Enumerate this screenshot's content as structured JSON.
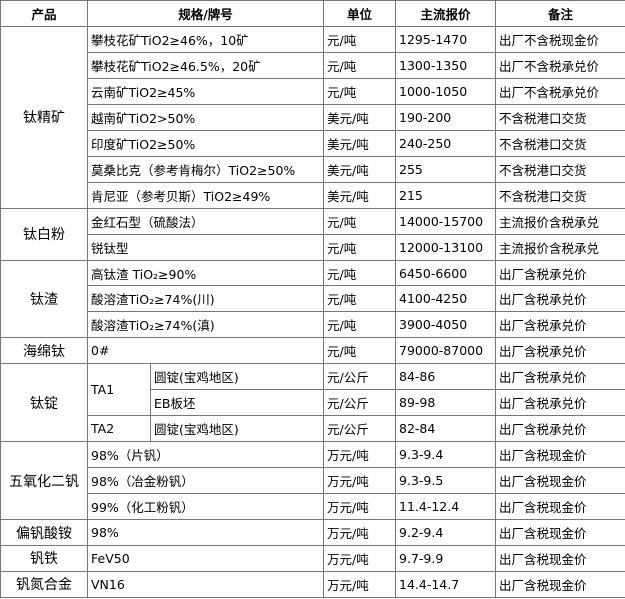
{
  "header": [
    "产品",
    "规格/牌号",
    "单位",
    "主流报价",
    "备注"
  ],
  "groups": [
    {
      "product": "钛精矿",
      "rows": [
        {
          "spec": "攀枝花矿TiO2≥46%，10矿",
          "unit": "元/吨",
          "price": "1295-1470",
          "note": "出厂不含税现金价"
        },
        {
          "spec": "攀枝花矿TiO2≥46.5%，20矿",
          "unit": "元/吨",
          "price": "1300-1350",
          "note": "出厂不含税承兑价"
        },
        {
          "spec": "云南矿TiO2≥45%",
          "unit": "元/吨",
          "price": "1000-1050",
          "note": "出厂不含税承兑价"
        },
        {
          "spec": "越南矿TiO2>50%",
          "unit": "美元/吨",
          "price": "190-200",
          "note": "不含税港口交货"
        },
        {
          "spec": "印度矿TiO2≥50%",
          "unit": "美元/吨",
          "price": "240-250",
          "note": "不含税港口交货"
        },
        {
          "spec": "莫桑比克（参考肯梅尔）TiO2≥50%",
          "unit": "美元/吨",
          "price": "255",
          "note": "不含税港口交货"
        },
        {
          "spec": "肯尼亚（参考贝斯）TiO2≥49%",
          "unit": "美元/吨",
          "price": "215",
          "note": "不含税港口交货"
        }
      ]
    },
    {
      "product": "钛白粉",
      "rows": [
        {
          "spec": "金红石型（硫酸法）",
          "unit": "元/吨",
          "price": "14000-15700",
          "note": "主流报价含税承兑"
        },
        {
          "spec": "锐钛型",
          "unit": "元/吨",
          "price": "12000-13100",
          "note": "主流报价含税承兑"
        }
      ]
    },
    {
      "product": "钛渣",
      "rows": [
        {
          "spec": "高钛渣 TiO₂≥90%",
          "unit": "元/吨",
          "price": "6450-6600",
          "note": "出厂含税承兑价"
        },
        {
          "spec": "酸溶渣TiO₂≥74%(川)",
          "unit": "元/吨",
          "price": "4100-4250",
          "note": "出厂含税承兑价"
        },
        {
          "spec": "酸溶渣TiO₂≥74%(滇)",
          "unit": "元/吨",
          "price": "3900-4050",
          "note": "出厂含税承兑价"
        }
      ]
    },
    {
      "product": "海绵钛",
      "rows": [
        {
          "spec": "0#",
          "unit": "元/吨",
          "price": "79000-87000",
          "note": "出厂含税承兑价"
        }
      ]
    },
    {
      "product": "钛锭",
      "subgroups": [
        {
          "grade": "TA1",
          "rows": [
            {
              "spec": "圆锭(宝鸡地区)",
              "unit": "元/公斤",
              "price": "84-86",
              "note": "出厂含税承兑价"
            },
            {
              "spec": "EB板坯",
              "unit": "元/公斤",
              "price": "89-98",
              "note": "出厂含税承兑价"
            }
          ]
        },
        {
          "grade": "TA2",
          "rows": [
            {
              "spec": "圆锭(宝鸡地区)",
              "unit": "元/公斤",
              "price": "82-84",
              "note": "出厂含税承兑价"
            }
          ]
        }
      ]
    },
    {
      "product": "五氧化二钒",
      "rows": [
        {
          "spec": "98%（片钒）",
          "unit": "万元/吨",
          "price": "9.3-9.4",
          "note": "出厂含税现金价"
        },
        {
          "spec": "98%（冶金粉钒）",
          "unit": "万元/吨",
          "price": "9.3-9.5",
          "note": "出厂含税现金价"
        },
        {
          "spec": "99%（化工粉钒）",
          "unit": "万元/吨",
          "price": "11.4-12.4",
          "note": "出厂含税现金价"
        }
      ]
    },
    {
      "product": "偏钒酸铵",
      "rows": [
        {
          "spec": "98%",
          "unit": "万元/吨",
          "price": "9.2-9.4",
          "note": "出厂含税现金价"
        }
      ]
    },
    {
      "product": "钒铁",
      "rows": [
        {
          "spec": "FeV50",
          "unit": "万元/吨",
          "price": "9.7-9.9",
          "note": "出厂含税现金价"
        }
      ]
    },
    {
      "product": "钒氮合金",
      "rows": [
        {
          "spec": "VN16",
          "unit": "万元/吨",
          "price": "14.4-14.7",
          "note": "出厂含税现金价"
        }
      ]
    }
  ]
}
